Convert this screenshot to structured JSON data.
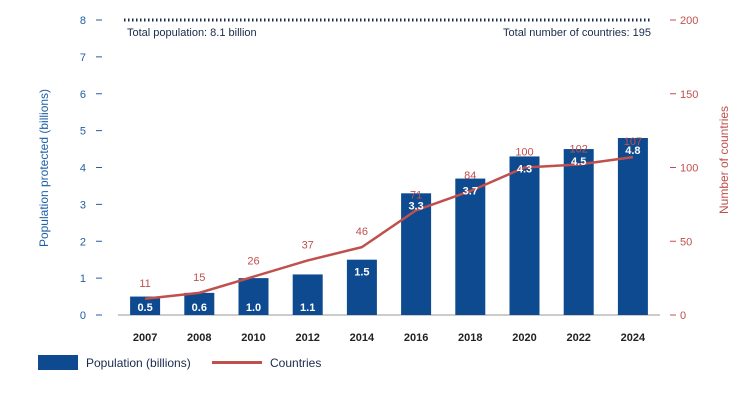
{
  "chart_data": {
    "type": "bar",
    "categories": [
      "2007",
      "2008",
      "2010",
      "2012",
      "2014",
      "2016",
      "2018",
      "2020",
      "2022",
      "2024"
    ],
    "series": [
      {
        "name": "Population (billions)",
        "type": "bar",
        "axis": "left",
        "values": [
          0.5,
          0.6,
          1.0,
          1.1,
          1.5,
          3.3,
          3.7,
          4.3,
          4.5,
          4.8
        ],
        "labels": [
          "0.5",
          "0.6",
          "1.0",
          "1.1",
          "1.5",
          "3.3",
          "3.7",
          "4.3",
          "4.5",
          "4.8"
        ],
        "color": "#0e4a8f"
      },
      {
        "name": "Countries",
        "type": "line",
        "axis": "right",
        "values": [
          11,
          15,
          26,
          37,
          46,
          71,
          84,
          100,
          102,
          107
        ],
        "labels": [
          "11",
          "15",
          "26",
          "37",
          "46",
          "71",
          "84",
          "100",
          "102",
          "107"
        ],
        "color": "#c0504d"
      }
    ],
    "ylabel": "Population protected (billions)",
    "ylabel_right": "Number of countries",
    "ylim": [
      0,
      8
    ],
    "ylim_right": [
      0,
      200
    ],
    "yticks": [
      "0",
      "1",
      "2",
      "3",
      "4",
      "5",
      "6",
      "7",
      "8"
    ],
    "yticks_right": [
      "0",
      "50",
      "100",
      "150",
      "200"
    ],
    "reference_line": {
      "value": 8.1,
      "style": "dotted",
      "color": "#1a2a4a",
      "left_text": "Total population: 8.1 billion",
      "right_text": "Total number of countries: 195"
    },
    "grid": false,
    "legend": "bottom-left"
  }
}
